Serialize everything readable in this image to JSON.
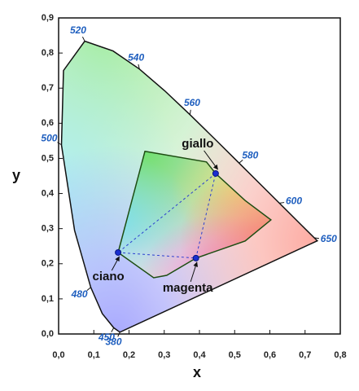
{
  "chart_data": {
    "type": "chromaticity",
    "x_label": "x",
    "y_label": "y",
    "xlim": [
      0,
      0.8
    ],
    "ylim": [
      0,
      0.9
    ],
    "xticks": [
      {
        "value": 0,
        "label": "0,0"
      },
      {
        "value": 0.1,
        "label": "0,1"
      },
      {
        "value": 0.2,
        "label": "0,2"
      },
      {
        "value": 0.3,
        "label": "0,3"
      },
      {
        "value": 0.4,
        "label": "0,4"
      },
      {
        "value": 0.5,
        "label": "0,5"
      },
      {
        "value": 0.6,
        "label": "0,6"
      },
      {
        "value": 0.7,
        "label": "0,7"
      },
      {
        "value": 0.8,
        "label": "0,8"
      }
    ],
    "yticks": [
      {
        "value": 0,
        "label": "0,0"
      },
      {
        "value": 0.1,
        "label": "0,1"
      },
      {
        "value": 0.2,
        "label": "0,2"
      },
      {
        "value": 0.3,
        "label": "0,3"
      },
      {
        "value": 0.4,
        "label": "0,4"
      },
      {
        "value": 0.5,
        "label": "0,5"
      },
      {
        "value": 0.6,
        "label": "0,6"
      },
      {
        "value": 0.7,
        "label": "0,7"
      },
      {
        "value": 0.8,
        "label": "0,8"
      },
      {
        "value": 0.9,
        "label": "0,9"
      }
    ],
    "locus": {
      "wavelengths": [
        380,
        450,
        null,
        480,
        null,
        500,
        null,
        520,
        null,
        540,
        null,
        560,
        null,
        580,
        null,
        600,
        null,
        650,
        null
      ],
      "x": [
        0.1741,
        0.1566,
        0.1241,
        0.0913,
        0.0454,
        0.0082,
        0.0139,
        0.0743,
        0.1547,
        0.2296,
        0.3016,
        0.3731,
        0.4441,
        0.5125,
        0.5752,
        0.627,
        0.6915,
        0.726,
        0.7347
      ],
      "y": [
        0.005,
        0.0177,
        0.0578,
        0.1327,
        0.295,
        0.5384,
        0.7502,
        0.8338,
        0.8059,
        0.7543,
        0.6923,
        0.6245,
        0.5547,
        0.4866,
        0.4242,
        0.3725,
        0.3083,
        0.274,
        0.2653
      ]
    },
    "gamut": {
      "x": [
        0.245,
        0.42,
        0.446,
        0.53,
        0.603,
        0.53,
        0.39,
        0.307,
        0.27,
        0.169
      ],
      "y": [
        0.52,
        0.49,
        0.457,
        0.38,
        0.325,
        0.265,
        0.216,
        0.167,
        0.16,
        0.232
      ]
    },
    "points": [
      {
        "name": "giallo",
        "x": 0.446,
        "y": 0.457
      },
      {
        "name": "ciano",
        "x": 0.169,
        "y": 0.232
      },
      {
        "name": "magenta",
        "x": 0.39,
        "y": 0.216
      }
    ]
  }
}
